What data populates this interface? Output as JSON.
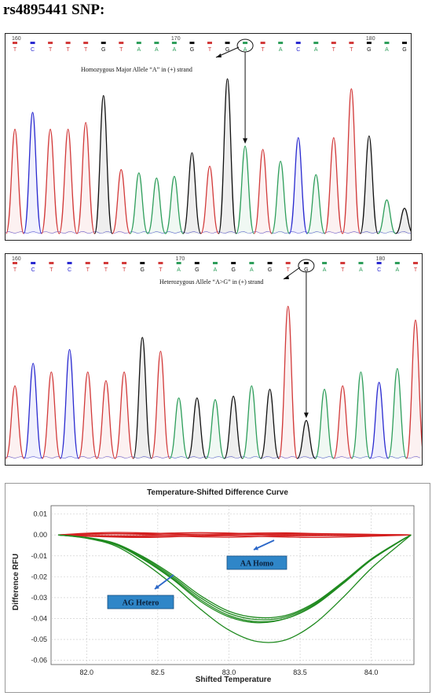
{
  "title": "rs4895441 SNP:",
  "colors": {
    "A": "#2e9e5b",
    "C": "#2a2ad0",
    "G": "#111111",
    "T": "#d23a3a",
    "melt_homo": "#d42020",
    "melt_hetero": "#1f8a1f",
    "callout_bg": "#2f86c8",
    "arrow": "#2b67c8"
  },
  "chrom1": {
    "positions": [
      "160",
      "170",
      "180"
    ],
    "bases": [
      "T",
      "C",
      "T",
      "T",
      "T",
      "G",
      "T",
      "A",
      "A",
      "A",
      "G",
      "T",
      "G",
      "A",
      "T",
      "A",
      "C",
      "A",
      "T",
      "T",
      "G",
      "A",
      "G"
    ],
    "peak_heights": [
      0.62,
      0.72,
      0.62,
      0.62,
      0.66,
      0.82,
      0.38,
      0.36,
      0.33,
      0.34,
      0.48,
      0.4,
      0.92,
      0.52,
      0.5,
      0.43,
      0.57,
      0.35,
      0.57,
      0.86,
      0.58,
      0.2,
      0.15
    ],
    "annotation": "Homozygous Major Allele “A” in (+) strand",
    "snp_index": 13
  },
  "chrom2": {
    "positions": [
      "160",
      "170",
      "180"
    ],
    "bases": [
      "T",
      "C",
      "T",
      "C",
      "T",
      "T",
      "T",
      "G",
      "T",
      "A",
      "G",
      "A",
      "G",
      "A",
      "G",
      "T",
      "G",
      "A",
      "T",
      "A",
      "C",
      "A",
      "T"
    ],
    "peak_heights": [
      0.42,
      0.55,
      0.5,
      0.63,
      0.5,
      0.45,
      0.5,
      0.7,
      0.62,
      0.35,
      0.35,
      0.34,
      0.36,
      0.42,
      0.4,
      0.88,
      0.22,
      0.4,
      0.42,
      0.5,
      0.44,
      0.52,
      0.8
    ],
    "annotation": "Heterozygous Allele “A>G” in (+) strand",
    "snp_index": 16
  },
  "melt_curve": {
    "title": "Temperature-Shifted Difference Curve",
    "xlabel": "Shifted Temperature",
    "ylabel": "Difference RFU",
    "callout_homo": "AA Homo",
    "callout_hetero": "AG Hetero"
  },
  "chart_data": {
    "type": "line",
    "title": "Temperature-Shifted Difference Curve",
    "xlabel": "Shifted Temperature",
    "ylabel": "Difference RFU",
    "xlim": [
      81.75,
      84.3
    ],
    "ylim": [
      -0.062,
      0.014
    ],
    "xticks": [
      "82.0",
      "82.5",
      "83.0",
      "83.5",
      "84.0"
    ],
    "yticks": [
      "0.01",
      "0.00",
      "-0.01",
      "-0.02",
      "-0.03",
      "-0.04",
      "-0.05",
      "-0.06"
    ],
    "x": [
      81.8,
      82.0,
      82.2,
      82.4,
      82.6,
      82.8,
      83.0,
      83.2,
      83.4,
      83.6,
      83.8,
      84.0,
      84.2,
      84.28
    ],
    "series": [
      {
        "name": "AA Homo",
        "group": "homo",
        "values": [
          0.0,
          0.0008,
          0.0012,
          0.001,
          0.0006,
          0.0004,
          0.0006,
          0.0009,
          0.001,
          0.0007,
          0.0005,
          0.0003,
          0.0001,
          0.0
        ]
      },
      {
        "group": "homo",
        "values": [
          0.0,
          -0.0006,
          -0.001,
          -0.0012,
          -0.0009,
          -0.0005,
          -0.0004,
          -0.0007,
          -0.001,
          -0.0012,
          -0.001,
          -0.0006,
          -0.0002,
          0.0
        ]
      },
      {
        "group": "homo",
        "values": [
          0.0,
          0.0003,
          0.0005,
          0.0003,
          0.0,
          -0.0002,
          0.0001,
          0.0004,
          0.0006,
          0.0004,
          0.0002,
          0.0,
          0.0,
          0.0
        ]
      },
      {
        "group": "homo",
        "values": [
          0.0,
          -0.0002,
          -0.0004,
          -0.0003,
          0.0001,
          0.0004,
          0.0003,
          0.0,
          -0.0003,
          -0.0004,
          -0.0003,
          -0.0002,
          -0.0001,
          0.0
        ]
      },
      {
        "group": "homo",
        "values": [
          0.0,
          0.0005,
          0.0007,
          0.0006,
          0.0009,
          0.0011,
          0.0009,
          0.0005,
          0.0002,
          0.0002,
          0.0003,
          0.0002,
          0.0001,
          0.0
        ]
      },
      {
        "group": "homo",
        "values": [
          0.0,
          -0.0004,
          -0.0007,
          -0.0008,
          -0.0006,
          -0.0009,
          -0.0011,
          -0.0008,
          -0.0005,
          -0.0003,
          -0.0004,
          -0.0003,
          -0.0001,
          0.0
        ]
      },
      {
        "name": "AG Hetero",
        "group": "hetero",
        "values": [
          0.0,
          -0.0012,
          -0.004,
          -0.0105,
          -0.019,
          -0.029,
          -0.0365,
          -0.0395,
          -0.0385,
          -0.0325,
          -0.0225,
          -0.0115,
          -0.003,
          0.0
        ]
      },
      {
        "group": "hetero",
        "values": [
          0.0,
          -0.0013,
          -0.0043,
          -0.011,
          -0.0198,
          -0.03,
          -0.0375,
          -0.0405,
          -0.0392,
          -0.033,
          -0.0228,
          -0.0117,
          -0.003,
          0.0
        ]
      },
      {
        "group": "hetero",
        "values": [
          0.0,
          -0.0014,
          -0.0046,
          -0.0115,
          -0.0205,
          -0.031,
          -0.0385,
          -0.0415,
          -0.04,
          -0.0338,
          -0.0234,
          -0.012,
          -0.0032,
          0.0
        ]
      },
      {
        "group": "hetero",
        "values": [
          0.0,
          -0.0013,
          -0.0045,
          -0.0118,
          -0.021,
          -0.0318,
          -0.0392,
          -0.042,
          -0.04,
          -0.0335,
          -0.023,
          -0.0118,
          -0.0031,
          0.0
        ]
      },
      {
        "group": "hetero",
        "values": [
          0.0,
          -0.0016,
          -0.0052,
          -0.0132,
          -0.0235,
          -0.0355,
          -0.0455,
          -0.051,
          -0.0502,
          -0.0425,
          -0.03,
          -0.016,
          -0.0045,
          0.0
        ]
      }
    ]
  }
}
